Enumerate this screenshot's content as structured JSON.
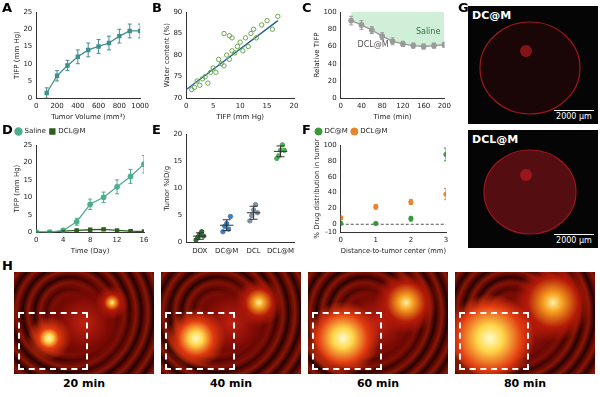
{
  "chart_data": [
    {
      "title": "A",
      "type": "line",
      "x": [
        100,
        200,
        300,
        400,
        500,
        600,
        700,
        800,
        900,
        1000
      ],
      "values": [
        1.5,
        6.5,
        9.5,
        12,
        14,
        15,
        16,
        18,
        19.5,
        19.5
      ],
      "errors": [
        1.5,
        1.5,
        1.5,
        2,
        2,
        2,
        2,
        2,
        2,
        2
      ],
      "color": "#3f8f8f",
      "marker": "square",
      "x_label": "Tumor Volume (mm³)",
      "y_label": "TIFP (mm Hg)",
      "xlim": [
        0,
        1000
      ],
      "xticks": [
        0,
        200,
        400,
        600,
        800,
        1000
      ],
      "ylim": [
        0,
        25
      ],
      "yticks": [
        0,
        5,
        10,
        15,
        20,
        25
      ]
    },
    {
      "title": "B",
      "type": "scatter",
      "series": [
        {
          "type": "scatter",
          "marker": "circle",
          "color": "#6aa84f",
          "x": [
            1,
            1.5,
            2,
            2.5,
            3,
            3.5,
            4,
            4.5,
            5,
            5.5,
            6,
            6.5,
            7,
            7,
            7.5,
            8,
            8,
            8.5,
            8.5,
            9,
            9.5,
            10,
            10.5,
            11,
            11.5,
            12,
            12.5,
            13,
            14,
            15,
            16,
            17
          ],
          "values": [
            72,
            72.5,
            74,
            73,
            74.5,
            75,
            73.5,
            76,
            77,
            76,
            79,
            78,
            77.5,
            85,
            80,
            79,
            84.5,
            81,
            84,
            80.5,
            82,
            83,
            81,
            84,
            82,
            85,
            86,
            84,
            87,
            88,
            86,
            89
          ]
        },
        {
          "type": "line",
          "color": "#1f5f8b",
          "x": [
            0,
            17
          ],
          "values": [
            72,
            88
          ]
        }
      ],
      "x_label": "TIFP (mm Hg)",
      "y_label": "Water content (%)",
      "xlim": [
        0,
        20
      ],
      "xticks": [
        0,
        5,
        10,
        15,
        20
      ],
      "ylim": [
        70,
        90
      ],
      "yticks": [
        70,
        75,
        80,
        85,
        90
      ]
    },
    {
      "title": "C",
      "type": "line",
      "series": [
        {
          "name": "DCL@M",
          "color": "#9a9a9a",
          "marker": "circle",
          "x": [
            20,
            40,
            60,
            80,
            100,
            120,
            140,
            160,
            180,
            200
          ],
          "values": [
            90,
            85,
            79,
            72,
            66,
            63,
            61,
            60,
            61,
            62
          ],
          "errors": [
            5,
            5,
            4,
            4,
            4,
            3,
            3,
            3,
            3,
            3
          ]
        }
      ],
      "annotations": [
        "Saline"
      ],
      "x_label": "Time (min)",
      "y_label": "Relative TIFP",
      "xlim": [
        0,
        200
      ],
      "xticks": [
        0,
        40,
        80,
        120,
        160,
        200
      ],
      "ylim": [
        0,
        100
      ],
      "yticks": [
        0,
        20,
        40,
        60,
        80,
        100
      ]
    },
    {
      "title": "D",
      "type": "line",
      "legend": "top-left",
      "x": [
        0,
        2,
        4,
        6,
        8,
        10,
        12,
        14,
        16
      ],
      "series": [
        {
          "name": "Saline",
          "color": "#4caf8f",
          "marker": "circle",
          "values": [
            0,
            0,
            0.5,
            3,
            8,
            10,
            13,
            16,
            19.5
          ],
          "errors": [
            0,
            0,
            0.5,
            1,
            1.5,
            1.5,
            2,
            2,
            2.5
          ]
        },
        {
          "name": "DCL@M",
          "color": "#2e5e1e",
          "marker": "square",
          "values": [
            0,
            0,
            0.3,
            0.5,
            0.7,
            0.8,
            0.5,
            0.3,
            0.2
          ],
          "errors": [
            0,
            0,
            0.2,
            0.3,
            0.3,
            0.3,
            0.2,
            0.2,
            0.2
          ]
        }
      ],
      "x_label": "Time (Day)",
      "y_label": "TIFP (mm Hg)",
      "xlim": [
        0,
        16
      ],
      "xticks": [
        0,
        4,
        8,
        12,
        16
      ],
      "ylim": [
        0,
        25
      ],
      "yticks": [
        0,
        5,
        10,
        15,
        20,
        25
      ]
    },
    {
      "title": "E",
      "type": "strip",
      "categories": [
        "DOX",
        "DC@M",
        "DCL",
        "DCL@M"
      ],
      "values": [
        [
          0.5,
          1,
          1.5,
          2,
          1.2
        ],
        [
          2,
          3,
          3.5,
          2.5,
          4.8
        ],
        [
          4,
          5,
          6,
          7,
          5.5
        ],
        [
          15.5,
          16,
          17,
          18,
          17
        ]
      ],
      "means": [
        1.2,
        3.2,
        5.5,
        16.8
      ],
      "errors": [
        0.6,
        1,
        1.2,
        1
      ],
      "colors": [
        "#2f6b2f",
        "#3b7fc4",
        "#7f8f9f",
        "#4caf50"
      ],
      "y_label": "Tumor %ID/g",
      "ylim": [
        0,
        20
      ],
      "yticks": [
        0,
        5,
        10,
        15,
        20
      ]
    },
    {
      "title": "F",
      "type": "scatter",
      "legend": "top-left",
      "x": [
        0,
        1,
        2,
        3
      ],
      "series": [
        {
          "name": "DC@M",
          "color": "#3a9a3a",
          "marker": "circle",
          "values": [
            1,
            1,
            7,
            88
          ],
          "errors": [
            1,
            1,
            3,
            8
          ]
        },
        {
          "name": "DCL@M",
          "color": "#e8842c",
          "marker": "circle",
          "values": [
            8,
            22,
            28,
            38
          ],
          "errors": [
            2,
            3,
            3,
            7
          ]
        }
      ],
      "reference_lines": [
        0
      ],
      "x_label": "Distance-to-tumor center (mm)",
      "y_label": "% Drug distribution in tumor",
      "xlim": [
        0,
        3
      ],
      "xticks": [
        0,
        1,
        2,
        3
      ],
      "ylim": [
        -10,
        100
      ],
      "yticks": [
        -10,
        0,
        20,
        40,
        60,
        80,
        100
      ]
    }
  ],
  "image_panels": {
    "G": {
      "title": "G",
      "images": [
        {
          "label": "DC@M",
          "scale_bar": "2000 µm"
        },
        {
          "label": "DCL@M",
          "scale_bar": "2000 µm"
        }
      ]
    },
    "H": {
      "title": "H",
      "labels": [
        "20 min",
        "40 min",
        "60 min",
        "80 min"
      ]
    }
  }
}
